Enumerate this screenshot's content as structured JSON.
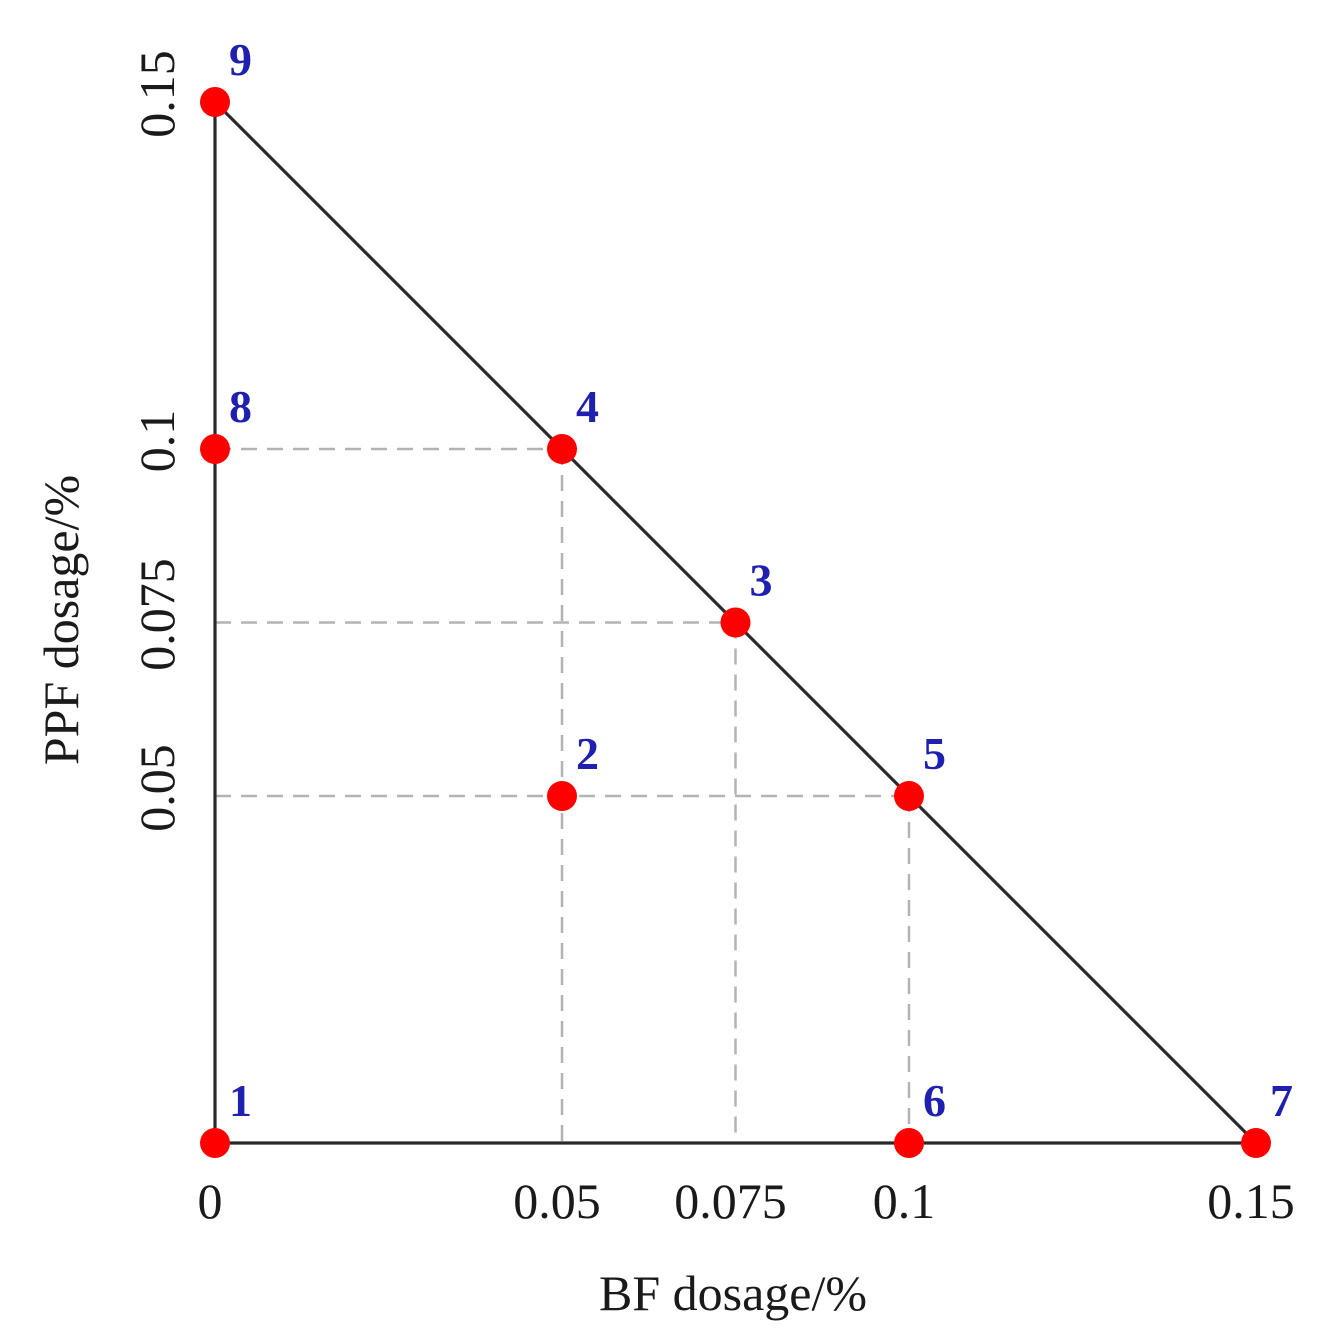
{
  "chart_data": {
    "type": "scatter",
    "title": "",
    "xlabel": "BF dosage/%",
    "ylabel": "PPF dosage/%",
    "xlim": [
      0,
      0.15
    ],
    "ylim": [
      0,
      0.15
    ],
    "x_ticks": [
      "0",
      "0.05",
      "0.075",
      "0.1",
      "0.15"
    ],
    "x_tick_values": [
      0,
      0.05,
      0.075,
      0.1,
      0.15
    ],
    "y_ticks": [
      "0.05",
      "0.075",
      "0.1",
      "0.15"
    ],
    "y_tick_values": [
      0.05,
      0.075,
      0.1,
      0.15
    ],
    "grid": false,
    "points": [
      {
        "label": "1",
        "x": 0,
        "y": 0
      },
      {
        "label": "2",
        "x": 0.05,
        "y": 0.05
      },
      {
        "label": "3",
        "x": 0.075,
        "y": 0.075
      },
      {
        "label": "4",
        "x": 0.05,
        "y": 0.1
      },
      {
        "label": "5",
        "x": 0.1,
        "y": 0.05
      },
      {
        "label": "6",
        "x": 0.1,
        "y": 0
      },
      {
        "label": "7",
        "x": 0.15,
        "y": 0
      },
      {
        "label": "8",
        "x": 0,
        "y": 0.1
      },
      {
        "label": "9",
        "x": 0,
        "y": 0.15
      }
    ],
    "boundary": [
      [
        0,
        0
      ],
      [
        0.15,
        0
      ],
      [
        0,
        0.15
      ]
    ],
    "guide_lines": [
      {
        "from": [
          0,
          0.1
        ],
        "to": [
          0.05,
          0.1
        ]
      },
      {
        "from": [
          0.05,
          0.1
        ],
        "to": [
          0.05,
          0
        ]
      },
      {
        "from": [
          0,
          0.075
        ],
        "to": [
          0.075,
          0.075
        ]
      },
      {
        "from": [
          0.075,
          0.075
        ],
        "to": [
          0.075,
          0
        ]
      },
      {
        "from": [
          0,
          0.05
        ],
        "to": [
          0.1,
          0.05
        ]
      },
      {
        "from": [
          0.1,
          0.05
        ],
        "to": [
          0.1,
          0
        ]
      }
    ],
    "colors": {
      "point": "#ff0000",
      "label": "#1f1fb0",
      "boundary": "#2a2a2a",
      "guide": "#b3b3b3"
    }
  }
}
